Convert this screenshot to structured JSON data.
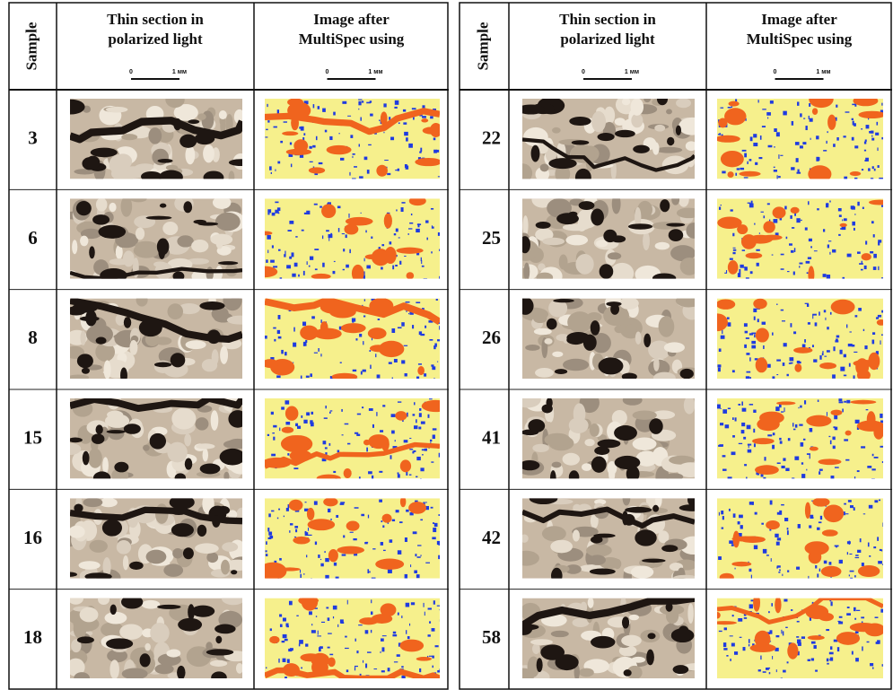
{
  "tables": [
    {
      "headers": [
        {
          "lines": [
            "Sample"
          ]
        },
        {
          "lines": [
            "Thin section in",
            "polarized light"
          ],
          "scale": [
            "0",
            "1 мм"
          ]
        },
        {
          "lines": [
            "Image after",
            "MultiSpec using"
          ],
          "scale": [
            "0",
            "1 мм"
          ]
        }
      ],
      "samples": [
        3,
        6,
        8,
        15,
        16,
        18
      ]
    },
    {
      "headers": [
        {
          "lines": [
            "Sample"
          ]
        },
        {
          "lines": [
            "Thin section in",
            "polarized light"
          ],
          "scale": [
            "0",
            "1 мм"
          ]
        },
        {
          "lines": [
            "Image after",
            "MultiSpec using"
          ],
          "scale": [
            "0",
            "1 мм"
          ]
        }
      ],
      "samples": [
        22,
        25,
        26,
        41,
        42,
        58
      ]
    }
  ]
}
